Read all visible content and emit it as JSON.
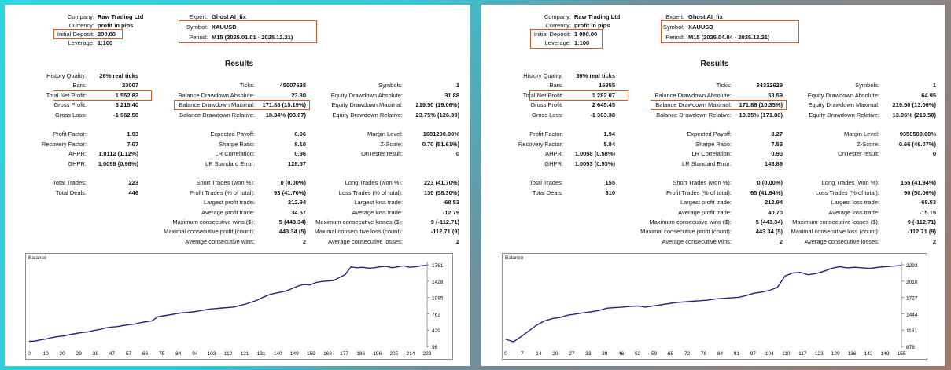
{
  "colors": {
    "highlight": "#d9591e",
    "line": "#26227a",
    "accent_bg": "#2fd6e0"
  },
  "reports": [
    {
      "header": {
        "company_label": "Company:",
        "company": "Raw Trading Ltd",
        "currency_label": "Currency:",
        "currency": "profit in pips",
        "deposit_label": "Initial Deposit:",
        "deposit": "200.00",
        "leverage_label": "Leverage:",
        "leverage": "1:100",
        "expert_label": "Expert:",
        "expert": "Ghost AI_fix",
        "symbol_label": "Symbol:",
        "symbol": "XAUUSD",
        "period_label": "Period:",
        "period": "M15 (2025.01.01 - 2025.12.21)"
      },
      "results_title": "Results",
      "col1": [
        [
          "History Quality:",
          "26% real ticks"
        ],
        [
          "Bars:",
          "23007"
        ],
        [
          "Total Net Profit:",
          "1 552.82"
        ],
        [
          "Gross Profit:",
          "3 215.40"
        ],
        [
          "Gross Loss:",
          "-1 662.58"
        ],
        [
          "",
          ""
        ],
        [
          "Profit Factor:",
          "1.93"
        ],
        [
          "Recovery Factor:",
          "7.07"
        ],
        [
          "AHPR:",
          "1.0112 (1.12%)"
        ],
        [
          "GHPR:",
          "1.0098 (0.98%)"
        ],
        [
          "",
          ""
        ],
        [
          "Total Trades:",
          "223"
        ],
        [
          "Total Deals:",
          "446"
        ]
      ],
      "col2": [
        [
          "",
          ""
        ],
        [
          "Ticks:",
          "45007638"
        ],
        [
          "Balance Drawdown Absolute:",
          "23.80"
        ],
        [
          "Balance Drawdown Maximal:",
          "171.88 (15.19%)"
        ],
        [
          "Balance Drawdown Relative:",
          "18.34% (93.67)"
        ],
        [
          "",
          ""
        ],
        [
          "Expected Payoff:",
          "6.96"
        ],
        [
          "Sharpe Ratio:",
          "8.10"
        ],
        [
          "LR Correlation:",
          "0.96"
        ],
        [
          "LR Standard Error:",
          "128.57"
        ],
        [
          "",
          ""
        ],
        [
          "Short Trades (won %):",
          "0 (0.00%)"
        ],
        [
          "Profit Trades (% of total):",
          "93 (41.70%)"
        ],
        [
          "Largest profit trade:",
          "212.94"
        ],
        [
          "Average profit trade:",
          "34.57"
        ],
        [
          "Maximum consecutive wins ($):",
          "5 (443.34)"
        ],
        [
          "Maximal consecutive profit (count):",
          "443.34 (5)"
        ],
        [
          "Average consecutive wins:",
          "2"
        ]
      ],
      "col3": [
        [
          "",
          ""
        ],
        [
          "Symbols:",
          "1"
        ],
        [
          "Equity Drawdown Absolute:",
          "31.88"
        ],
        [
          "Equity Drawdown Maximal:",
          "219.50 (19.06%)"
        ],
        [
          "Equity Drawdown Relative:",
          "23.75% (126.39)"
        ],
        [
          "",
          ""
        ],
        [
          "Margin Level:",
          "1681200.00%"
        ],
        [
          "Z-Score:",
          "0.70 (51.61%)"
        ],
        [
          "OnTester result:",
          "0"
        ],
        [
          "",
          ""
        ],
        [
          "",
          ""
        ],
        [
          "Long Trades (won %):",
          "223 (41.70%)"
        ],
        [
          "Loss Trades (% of total):",
          "130 (58.30%)"
        ],
        [
          "Largest loss trade:",
          "-68.53"
        ],
        [
          "Average loss trade:",
          "-12.79"
        ],
        [
          "Maximum consecutive losses ($):",
          "9 (-112.71)"
        ],
        [
          "Maximal consecutive loss (count):",
          "-112.71 (9)"
        ],
        [
          "Average consecutive losses:",
          "2"
        ]
      ],
      "chart": {
        "label": "Balance",
        "y_ticks": [
          "1761",
          "1428",
          "1095",
          "762",
          "429",
          "96"
        ],
        "ylim": [
          96,
          1761
        ],
        "x_ticks": [
          "0",
          "10",
          "20",
          "29",
          "38",
          "47",
          "57",
          "66",
          "75",
          "84",
          "94",
          "103",
          "112",
          "121",
          "131",
          "140",
          "149",
          "159",
          "168",
          "177",
          "186",
          "196",
          "205",
          "214",
          "223"
        ],
        "values": [
          200,
          205,
          230,
          250,
          280,
          300,
          310,
          340,
          360,
          380,
          390,
          420,
          440,
          470,
          490,
          500,
          520,
          540,
          550,
          580,
          600,
          620,
          700,
          720,
          740,
          760,
          780,
          790,
          800,
          820,
          840,
          860,
          870,
          880,
          890,
          900,
          930,
          960,
          1000,
          1040,
          1100,
          1150,
          1180,
          1200,
          1230,
          1280,
          1330,
          1360,
          1350,
          1400,
          1420,
          1430,
          1440,
          1500,
          1560,
          1720,
          1700,
          1710,
          1690,
          1700,
          1720,
          1730,
          1700,
          1720,
          1740,
          1710,
          1720,
          1740,
          1752
        ]
      }
    },
    {
      "header": {
        "company_label": "Company:",
        "company": "Raw Trading Ltd",
        "currency_label": "Currency:",
        "currency": "profit in pips",
        "deposit_label": "Initial Deposit:",
        "deposit": "1 000.00",
        "leverage_label": "Leverage:",
        "leverage": "1:100",
        "expert_label": "Expert:",
        "expert": "Ghost AI_fix",
        "symbol_label": "Symbol:",
        "symbol": "XAUUSD",
        "period_label": "Period:",
        "period": "M15 (2025.04.04 - 2025.12.21)"
      },
      "results_title": "Results",
      "col1": [
        [
          "History Quality:",
          "36% real ticks"
        ],
        [
          "Bars:",
          "16955"
        ],
        [
          "Total Net Profit:",
          "1 282.07"
        ],
        [
          "Gross Profit:",
          "2 645.45"
        ],
        [
          "Gross Loss:",
          "-1 363.38"
        ],
        [
          "",
          ""
        ],
        [
          "Profit Factor:",
          "1.94"
        ],
        [
          "Recovery Factor:",
          "5.84"
        ],
        [
          "AHPR:",
          "1.0058 (0.58%)"
        ],
        [
          "GHPR:",
          "1.0053 (0.53%)"
        ],
        [
          "",
          ""
        ],
        [
          "Total Trades:",
          "155"
        ],
        [
          "Total Deals:",
          "310"
        ]
      ],
      "col2": [
        [
          "",
          ""
        ],
        [
          "Ticks:",
          "34332629"
        ],
        [
          "Balance Drawdown Absolute:",
          "53.59"
        ],
        [
          "Balance Drawdown Maximal:",
          "171.88 (10.35%)"
        ],
        [
          "Balance Drawdown Relative:",
          "10.35% (171.88)"
        ],
        [
          "",
          ""
        ],
        [
          "Expected Payoff:",
          "8.27"
        ],
        [
          "Sharpe Ratio:",
          "7.53"
        ],
        [
          "LR Correlation:",
          "0.90"
        ],
        [
          "LR Standard Error:",
          "143.89"
        ],
        [
          "",
          ""
        ],
        [
          "Short Trades (won %):",
          "0 (0.00%)"
        ],
        [
          "Profit Trades (% of total):",
          "65 (41.94%)"
        ],
        [
          "Largest profit trade:",
          "212.94"
        ],
        [
          "Average profit trade:",
          "40.70"
        ],
        [
          "Maximum consecutive wins ($):",
          "5 (443.34)"
        ],
        [
          "Maximal consecutive profit (count):",
          "443.34 (5)"
        ],
        [
          "Average consecutive wins:",
          "2"
        ]
      ],
      "col3": [
        [
          "",
          ""
        ],
        [
          "Symbols:",
          "1"
        ],
        [
          "Equity Drawdown Absolute:",
          "64.95"
        ],
        [
          "Equity Drawdown Maximal:",
          "219.50 (13.06%)"
        ],
        [
          "Equity Drawdown Relative:",
          "13.06% (219.50)"
        ],
        [
          "",
          ""
        ],
        [
          "Margin Level:",
          "9350500.00%"
        ],
        [
          "Z-Score:",
          "0.66 (49.07%)"
        ],
        [
          "OnTester result:",
          "0"
        ],
        [
          "",
          ""
        ],
        [
          "",
          ""
        ],
        [
          "Long Trades (won %):",
          "155 (41.94%)"
        ],
        [
          "Loss Trades (% of total):",
          "90 (58.06%)"
        ],
        [
          "Largest loss trade:",
          "-68.53"
        ],
        [
          "Average loss trade:",
          "-15.15"
        ],
        [
          "Maximum consecutive losses ($):",
          "9 (-112.71)"
        ],
        [
          "Maximal consecutive loss (count):",
          "-112.71 (9)"
        ],
        [
          "Average consecutive losses:",
          "2"
        ]
      ],
      "chart": {
        "label": "Balance",
        "y_ticks": [
          "2293",
          "2010",
          "1727",
          "1444",
          "1161",
          "878"
        ],
        "ylim": [
          878,
          2293
        ],
        "x_ticks": [
          "0",
          "7",
          "14",
          "20",
          "27",
          "33",
          "39",
          "46",
          "52",
          "59",
          "65",
          "72",
          "78",
          "84",
          "91",
          "97",
          "104",
          "110",
          "117",
          "123",
          "129",
          "136",
          "142",
          "149",
          "155"
        ],
        "values": [
          1000,
          960,
          1050,
          1150,
          1250,
          1320,
          1360,
          1380,
          1420,
          1440,
          1460,
          1480,
          1500,
          1540,
          1550,
          1560,
          1570,
          1580,
          1560,
          1580,
          1600,
          1620,
          1640,
          1650,
          1660,
          1670,
          1680,
          1700,
          1710,
          1720,
          1730,
          1760,
          1800,
          1820,
          1850,
          1900,
          2100,
          2150,
          2160,
          2120,
          2140,
          2180,
          2230,
          2260,
          2240,
          2250,
          2240,
          2230,
          2250,
          2260,
          2270,
          2282
        ]
      }
    }
  ]
}
